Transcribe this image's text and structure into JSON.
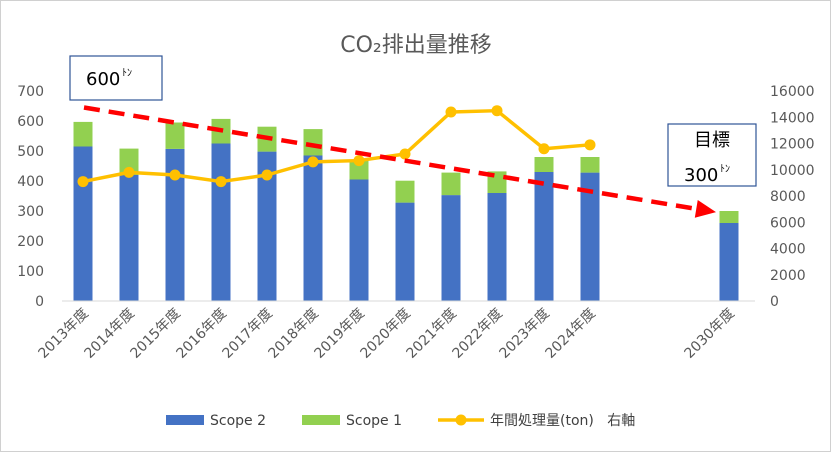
{
  "chart_data": {
    "type": "bar",
    "title": "CO₂排出量推移",
    "categories": [
      "2013年度",
      "2014年度",
      "2015年度",
      "2016年度",
      "2017年度",
      "2018年度",
      "2019年度",
      "2020年度",
      "2021年度",
      "2022年度",
      "2023年度",
      "2024年度",
      "2030年度"
    ],
    "series": [
      {
        "name": "Scope 2",
        "type": "stacked-bar",
        "axis": "left",
        "color": "#4472c4",
        "values": [
          515,
          420,
          507,
          525,
          498,
          485,
          405,
          328,
          353,
          360,
          430,
          428,
          260
        ]
      },
      {
        "name": "Scope 1",
        "type": "stacked-bar",
        "axis": "left",
        "color": "#92d050",
        "values": [
          82,
          88,
          88,
          82,
          83,
          88,
          65,
          73,
          75,
          72,
          50,
          52,
          40
        ]
      },
      {
        "name": "年間処理量(ton)",
        "type": "line",
        "axis": "right",
        "color": "#ffc000",
        "values": [
          9100,
          9800,
          9600,
          9100,
          9600,
          10600,
          10700,
          11200,
          14400,
          14500,
          11600,
          11900,
          null
        ]
      }
    ],
    "y_left": {
      "min": 0,
      "max": 700,
      "ticks": [
        0,
        100,
        200,
        300,
        400,
        500,
        600,
        700
      ]
    },
    "y_right": {
      "min": 0,
      "max": 16000,
      "ticks": [
        0,
        2000,
        4000,
        6000,
        8000,
        10000,
        12000,
        14000,
        16000
      ]
    },
    "trend_arrow": {
      "color": "#ff0000",
      "from_value": 645,
      "to_value": 305
    },
    "legend_position": "bottom",
    "legend_suffix": "右軸",
    "grid": false
  },
  "annotations": {
    "start_value": "600",
    "start_unit": "ﾄﾝ",
    "target_label": "目標",
    "target_value": "300",
    "target_unit": "ﾄﾝ"
  }
}
